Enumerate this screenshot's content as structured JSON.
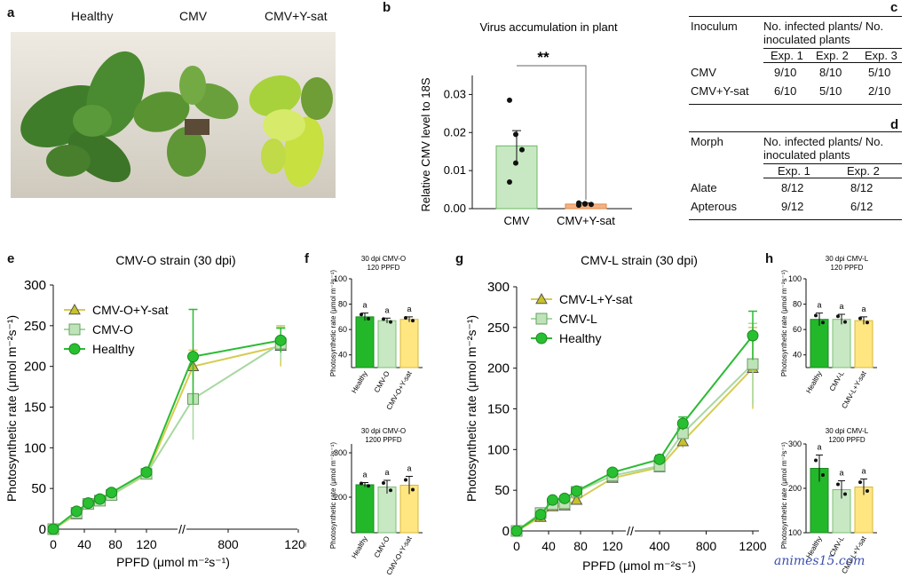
{
  "panels": {
    "a": {
      "label": "a",
      "groups": [
        "Healthy",
        "CMV",
        "CMV+Y-sat"
      ]
    },
    "b": {
      "label": "b",
      "title": "Virus accumulation in plant",
      "ylabel": "Relative CMV level to 18S",
      "significance": "**",
      "categories": [
        "CMV",
        "CMV+Y-sat"
      ]
    },
    "c": {
      "label": "c",
      "col1": "Inoculum",
      "col2a": "No. infected plants/ No.",
      "col2b": "inoculated plants",
      "exps": [
        "Exp. 1",
        "Exp. 2",
        "Exp. 3"
      ],
      "rows": [
        {
          "name": "CMV",
          "vals": [
            "9/10",
            "8/10",
            "5/10"
          ]
        },
        {
          "name": "CMV+Y-sat",
          "vals": [
            "6/10",
            "5/10",
            "2/10"
          ]
        }
      ]
    },
    "d": {
      "label": "d",
      "col1": "Morph",
      "col2a": "No. infected plants/ No.",
      "col2b": "inoculated plants",
      "exps": [
        "Exp. 1",
        "Exp. 2"
      ],
      "rows": [
        {
          "name": "Alate",
          "vals": [
            "8/12",
            "8/12"
          ]
        },
        {
          "name": "Apterous",
          "vals": [
            "9/12",
            "6/12"
          ]
        }
      ]
    },
    "e": {
      "label": "e",
      "title": "CMV-O strain (30 dpi)",
      "legend": [
        "CMV-O+Y-sat",
        "CMV-O",
        "Healthy"
      ]
    },
    "f": {
      "label": "f",
      "top_title1": "30 dpi CMV-O",
      "top_title2": "120 PPFD",
      "bot_title1": "30 dpi CMV-O",
      "bot_title2": "1200 PPFD",
      "cats": [
        "Healthy",
        "CMV-O",
        "CMV-O+Y-sat"
      ],
      "letter": "a"
    },
    "g": {
      "label": "g",
      "title": "CMV-L strain (30 dpi)",
      "legend": [
        "CMV-L+Y-sat",
        "CMV-L",
        "Healthy"
      ]
    },
    "h": {
      "label": "h",
      "top_title1": "30 dpi CMV-L",
      "top_title2": "120 PPFD",
      "bot_title1": "30 dpi CMV-L",
      "bot_title2": "1200 PPFD",
      "cats": [
        "Healthy",
        "CMV-L",
        "CMV-L+Y-sat"
      ],
      "letter": "a"
    }
  },
  "axes": {
    "photo_ylabel_main": "Photosynthetic rate (μmol m⁻²s⁻¹)",
    "photo_ylabel_small": "Photosynthetic rate (μmol m⁻²s⁻¹)",
    "ppfd_label": "PPFD (μmol m⁻²s⁻¹)"
  },
  "watermark": "animes15.com",
  "colors": {
    "healthy": "#22b82a",
    "cmv": "#b7e0b0",
    "ysat": "#c9c12a",
    "cmv_bar": "#c8e8c4",
    "ysat_bar": "#f4b183",
    "bar_yellow": "#ffe680"
  },
  "chart_data": [
    {
      "id": "b",
      "type": "bar",
      "categories": [
        "CMV",
        "CMV+Y-sat"
      ],
      "values": [
        0.0165,
        0.0012
      ],
      "errors": [
        0.004,
        0.0003
      ],
      "ylim": [
        0,
        0.035
      ],
      "yticks": [
        0.0,
        0.01,
        0.02,
        0.03
      ],
      "ytick_labels": [
        "0.00",
        "0.01",
        "0.02",
        "0.03"
      ],
      "points": [
        [
          0.0285,
          0.0195,
          0.0155,
          0.007,
          0.012
        ],
        [
          0.0015,
          0.0012,
          0.0011,
          0.0009,
          0.0013
        ]
      ]
    },
    {
      "id": "e",
      "type": "line",
      "xlabel": "PPFD (μmol m⁻²s⁻¹)",
      "x": [
        0,
        30,
        45,
        60,
        75,
        120,
        600,
        1100
      ],
      "xticks": [
        0,
        40,
        80,
        120,
        800,
        1200
      ],
      "xtick_labels": [
        "0",
        "40",
        "80",
        "120",
        "800",
        "1200"
      ],
      "yticks": [
        0,
        50,
        100,
        150,
        200,
        250,
        300
      ],
      "ylim": [
        0,
        300
      ],
      "series": [
        {
          "name": "CMV-O+Y-sat",
          "values": [
            0,
            18,
            30,
            35,
            42,
            67,
            200,
            225
          ],
          "errors": [
            0,
            2,
            2,
            2,
            2,
            3,
            20,
            25
          ]
        },
        {
          "name": "CMV-O",
          "values": [
            0,
            20,
            31,
            35,
            42,
            68,
            160,
            228
          ],
          "errors": [
            0,
            2,
            2,
            2,
            2,
            3,
            50,
            20
          ]
        },
        {
          "name": "Healthy",
          "values": [
            0,
            22,
            32,
            37,
            45,
            70,
            212,
            232
          ],
          "errors": [
            0,
            2,
            2,
            2,
            2,
            3,
            58,
            15
          ]
        }
      ]
    },
    {
      "id": "f_top",
      "type": "bar",
      "categories": [
        "Healthy",
        "CMV-O",
        "CMV-O+Y-sat"
      ],
      "values": [
        70,
        67,
        68
      ],
      "errors": [
        3,
        2,
        2
      ],
      "ylim": [
        30,
        100
      ],
      "yticks": [
        40,
        60,
        80,
        100
      ]
    },
    {
      "id": "f_bot",
      "type": "bar",
      "categories": [
        "Healthy",
        "CMV-O",
        "CMV-O+Y-sat"
      ],
      "values": [
        228,
        223,
        227
      ],
      "errors": [
        5,
        15,
        20
      ],
      "ylim": [
        120,
        320
      ],
      "yticks": [
        200,
        300
      ]
    },
    {
      "id": "g",
      "type": "line",
      "xlabel": "PPFD (μmol m⁻²s⁻¹)",
      "x": [
        0,
        30,
        45,
        60,
        75,
        120,
        400,
        600,
        1200
      ],
      "xticks": [
        0,
        40,
        80,
        120,
        400,
        800,
        1200
      ],
      "xtick_labels": [
        "0",
        "40",
        "80",
        "120",
        "400",
        "800",
        "1200"
      ],
      "yticks": [
        0,
        50,
        100,
        150,
        200,
        250,
        300
      ],
      "ylim": [
        0,
        300
      ],
      "series": [
        {
          "name": "CMV-L+Y-sat",
          "values": [
            0,
            17,
            30,
            31,
            38,
            65,
            78,
            110,
            200
          ],
          "errors": [
            0,
            2,
            2,
            2,
            2,
            3,
            5,
            8,
            50
          ]
        },
        {
          "name": "CMV-L",
          "values": [
            0,
            22,
            33,
            34,
            48,
            68,
            80,
            120,
            205
          ],
          "errors": [
            0,
            2,
            2,
            2,
            2,
            3,
            5,
            8,
            50
          ]
        },
        {
          "name": "Healthy",
          "values": [
            0,
            20,
            38,
            40,
            49,
            72,
            88,
            132,
            240
          ],
          "errors": [
            0,
            2,
            2,
            2,
            2,
            3,
            5,
            8,
            30
          ]
        }
      ]
    },
    {
      "id": "h_top",
      "type": "bar",
      "categories": [
        "Healthy",
        "CMV-L",
        "CMV-L+Y-sat"
      ],
      "values": [
        68,
        68,
        67
      ],
      "errors": [
        5,
        4,
        3
      ],
      "ylim": [
        30,
        100
      ],
      "yticks": [
        40,
        60,
        80,
        100
      ]
    },
    {
      "id": "h_bot",
      "type": "bar",
      "categories": [
        "Healthy",
        "CMV-L",
        "CMV-L+Y-sat"
      ],
      "values": [
        245,
        197,
        203
      ],
      "errors": [
        30,
        20,
        18
      ],
      "ylim": [
        100,
        300
      ],
      "yticks": [
        100,
        200,
        300
      ]
    }
  ]
}
